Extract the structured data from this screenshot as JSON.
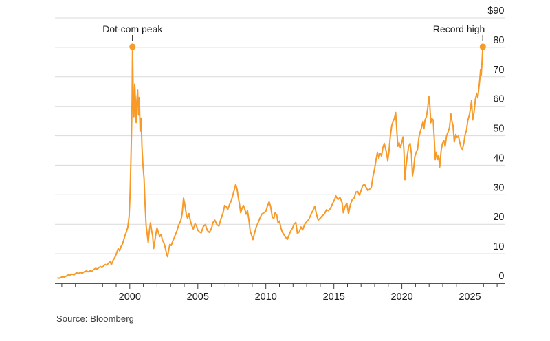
{
  "chart_data": {
    "type": "line",
    "title": "",
    "series_name": "Stock price",
    "unit": "$",
    "colors": {
      "line": "#F79A28",
      "grid": "#D9D9D9",
      "axis": "#3B3B3B",
      "text": "#1A1A1A"
    },
    "x_axis": {
      "range": [
        1994.5,
        2027.6
      ],
      "tick_years_start": 1995,
      "tick_years_end": 2027,
      "labeled_ticks": [
        2000,
        2005,
        2010,
        2015,
        2020,
        2025
      ]
    },
    "y_axis": {
      "range": [
        0,
        90
      ],
      "tick_step": 10,
      "tick_labels": [
        "0",
        "10",
        "20",
        "30",
        "40",
        "50",
        "60",
        "70",
        "80",
        "$90"
      ],
      "grid": true
    },
    "legend": "none",
    "annotations": [
      {
        "label": "Dot-com peak",
        "year": 2000.2,
        "value": 80.2,
        "align": "center"
      },
      {
        "label": "Record high",
        "year": 2025.95,
        "value": 80.2,
        "align": "end"
      }
    ],
    "points": [
      [
        1994.7,
        1.8
      ],
      [
        1994.8,
        1.7
      ],
      [
        1994.95,
        2.0
      ],
      [
        1995.1,
        2.2
      ],
      [
        1995.2,
        2.1
      ],
      [
        1995.35,
        2.5
      ],
      [
        1995.5,
        2.9
      ],
      [
        1995.6,
        2.7
      ],
      [
        1995.75,
        3.1
      ],
      [
        1995.9,
        2.8
      ],
      [
        1996.0,
        3.3
      ],
      [
        1996.1,
        3.6
      ],
      [
        1996.2,
        3.2
      ],
      [
        1996.35,
        3.7
      ],
      [
        1996.5,
        3.4
      ],
      [
        1996.65,
        3.9
      ],
      [
        1996.8,
        4.2
      ],
      [
        1996.95,
        3.9
      ],
      [
        1997.1,
        4.3
      ],
      [
        1997.2,
        4.0
      ],
      [
        1997.35,
        4.7
      ],
      [
        1997.5,
        5.1
      ],
      [
        1997.6,
        4.8
      ],
      [
        1997.75,
        5.4
      ],
      [
        1997.85,
        5.7
      ],
      [
        1997.95,
        5.3
      ],
      [
        1998.1,
        6.0
      ],
      [
        1998.2,
        6.4
      ],
      [
        1998.3,
        6.1
      ],
      [
        1998.45,
        6.9
      ],
      [
        1998.55,
        7.3
      ],
      [
        1998.65,
        6.3
      ],
      [
        1998.75,
        7.6
      ],
      [
        1998.85,
        8.4
      ],
      [
        1998.95,
        9.2
      ],
      [
        1999.05,
        10.5
      ],
      [
        1999.15,
        11.8
      ],
      [
        1999.25,
        11.0
      ],
      [
        1999.35,
        12.4
      ],
      [
        1999.45,
        13.2
      ],
      [
        1999.55,
        14.6
      ],
      [
        1999.65,
        16.2
      ],
      [
        1999.75,
        17.4
      ],
      [
        1999.85,
        19.0
      ],
      [
        1999.95,
        22.5
      ],
      [
        2000.02,
        30.0
      ],
      [
        2000.08,
        41.0
      ],
      [
        2000.13,
        52.0
      ],
      [
        2000.17,
        62.0
      ],
      [
        2000.2,
        80.2
      ],
      [
        2000.25,
        63.0
      ],
      [
        2000.3,
        56.5
      ],
      [
        2000.36,
        67.5
      ],
      [
        2000.42,
        62.0
      ],
      [
        2000.47,
        54.5
      ],
      [
        2000.53,
        62.5
      ],
      [
        2000.58,
        65.5
      ],
      [
        2000.64,
        57.0
      ],
      [
        2000.7,
        63.0
      ],
      [
        2000.76,
        51.5
      ],
      [
        2000.83,
        56.0
      ],
      [
        2000.9,
        46.0
      ],
      [
        2000.97,
        40.0
      ],
      [
        2001.05,
        35.5
      ],
      [
        2001.12,
        27.0
      ],
      [
        2001.2,
        19.5
      ],
      [
        2001.28,
        16.5
      ],
      [
        2001.35,
        13.8
      ],
      [
        2001.43,
        17.5
      ],
      [
        2001.52,
        20.5
      ],
      [
        2001.6,
        18.0
      ],
      [
        2001.68,
        16.0
      ],
      [
        2001.75,
        11.8
      ],
      [
        2001.83,
        14.0
      ],
      [
        2001.92,
        16.8
      ],
      [
        2002.0,
        18.8
      ],
      [
        2002.1,
        17.2
      ],
      [
        2002.2,
        15.8
      ],
      [
        2002.3,
        16.6
      ],
      [
        2002.4,
        14.6
      ],
      [
        2002.5,
        13.8
      ],
      [
        2002.6,
        12.2
      ],
      [
        2002.7,
        10.0
      ],
      [
        2002.78,
        9.0
      ],
      [
        2002.87,
        11.6
      ],
      [
        2002.95,
        13.2
      ],
      [
        2003.05,
        12.8
      ],
      [
        2003.15,
        14.2
      ],
      [
        2003.3,
        15.8
      ],
      [
        2003.45,
        17.6
      ],
      [
        2003.6,
        19.8
      ],
      [
        2003.75,
        21.2
      ],
      [
        2003.85,
        23.6
      ],
      [
        2003.95,
        28.9
      ],
      [
        2004.05,
        26.5
      ],
      [
        2004.15,
        23.4
      ],
      [
        2004.25,
        22.0
      ],
      [
        2004.35,
        23.6
      ],
      [
        2004.45,
        21.2
      ],
      [
        2004.55,
        19.6
      ],
      [
        2004.67,
        18.4
      ],
      [
        2004.8,
        20.2
      ],
      [
        2004.9,
        19.4
      ],
      [
        2005.0,
        18.0
      ],
      [
        2005.12,
        17.4
      ],
      [
        2005.25,
        17.1
      ],
      [
        2005.4,
        19.2
      ],
      [
        2005.55,
        19.9
      ],
      [
        2005.7,
        17.9
      ],
      [
        2005.85,
        17.2
      ],
      [
        2006.0,
        18.6
      ],
      [
        2006.12,
        20.6
      ],
      [
        2006.25,
        21.4
      ],
      [
        2006.4,
        19.9
      ],
      [
        2006.55,
        19.4
      ],
      [
        2006.7,
        21.8
      ],
      [
        2006.85,
        23.8
      ],
      [
        2006.97,
        26.4
      ],
      [
        2007.1,
        25.9
      ],
      [
        2007.2,
        25.0
      ],
      [
        2007.32,
        26.6
      ],
      [
        2007.45,
        27.9
      ],
      [
        2007.57,
        29.8
      ],
      [
        2007.68,
        31.6
      ],
      [
        2007.78,
        33.5
      ],
      [
        2007.88,
        32.0
      ],
      [
        2007.97,
        29.2
      ],
      [
        2008.07,
        26.6
      ],
      [
        2008.15,
        23.9
      ],
      [
        2008.25,
        25.4
      ],
      [
        2008.35,
        26.4
      ],
      [
        2008.45,
        25.2
      ],
      [
        2008.55,
        23.4
      ],
      [
        2008.65,
        24.6
      ],
      [
        2008.75,
        21.6
      ],
      [
        2008.85,
        17.6
      ],
      [
        2008.95,
        16.4
      ],
      [
        2009.05,
        14.8
      ],
      [
        2009.15,
        16.6
      ],
      [
        2009.28,
        18.9
      ],
      [
        2009.42,
        20.4
      ],
      [
        2009.55,
        21.9
      ],
      [
        2009.7,
        23.4
      ],
      [
        2009.85,
        23.9
      ],
      [
        2010.0,
        24.4
      ],
      [
        2010.12,
        26.2
      ],
      [
        2010.24,
        27.6
      ],
      [
        2010.35,
        26.1
      ],
      [
        2010.47,
        22.6
      ],
      [
        2010.58,
        21.9
      ],
      [
        2010.68,
        23.9
      ],
      [
        2010.8,
        23.1
      ],
      [
        2010.9,
        20.4
      ],
      [
        2011.0,
        21.1
      ],
      [
        2011.1,
        18.9
      ],
      [
        2011.2,
        17.4
      ],
      [
        2011.32,
        16.6
      ],
      [
        2011.45,
        15.6
      ],
      [
        2011.58,
        14.9
      ],
      [
        2011.7,
        16.3
      ],
      [
        2011.82,
        17.6
      ],
      [
        2011.95,
        18.6
      ],
      [
        2012.08,
        20.1
      ],
      [
        2012.2,
        20.6
      ],
      [
        2012.32,
        16.9
      ],
      [
        2012.45,
        17.4
      ],
      [
        2012.58,
        19.1
      ],
      [
        2012.7,
        18.1
      ],
      [
        2012.85,
        19.9
      ],
      [
        2013.0,
        20.9
      ],
      [
        2013.15,
        21.6
      ],
      [
        2013.3,
        23.1
      ],
      [
        2013.45,
        24.6
      ],
      [
        2013.6,
        26.1
      ],
      [
        2013.72,
        23.4
      ],
      [
        2013.85,
        21.4
      ],
      [
        2014.0,
        22.1
      ],
      [
        2014.15,
        22.9
      ],
      [
        2014.3,
        23.4
      ],
      [
        2014.45,
        24.9
      ],
      [
        2014.6,
        24.6
      ],
      [
        2014.75,
        25.4
      ],
      [
        2014.9,
        26.9
      ],
      [
        2015.05,
        28.4
      ],
      [
        2015.15,
        29.6
      ],
      [
        2015.3,
        28.4
      ],
      [
        2015.45,
        29.1
      ],
      [
        2015.6,
        27.4
      ],
      [
        2015.7,
        23.9
      ],
      [
        2015.82,
        26.1
      ],
      [
        2015.95,
        27.1
      ],
      [
        2016.08,
        23.6
      ],
      [
        2016.2,
        26.4
      ],
      [
        2016.35,
        28.4
      ],
      [
        2016.5,
        28.9
      ],
      [
        2016.62,
        30.9
      ],
      [
        2016.75,
        31.1
      ],
      [
        2016.88,
        29.9
      ],
      [
        2017.0,
        31.4
      ],
      [
        2017.12,
        33.1
      ],
      [
        2017.25,
        33.6
      ],
      [
        2017.38,
        32.4
      ],
      [
        2017.5,
        31.4
      ],
      [
        2017.62,
        31.9
      ],
      [
        2017.75,
        32.4
      ],
      [
        2017.88,
        36.4
      ],
      [
        2018.0,
        38.9
      ],
      [
        2018.1,
        41.9
      ],
      [
        2018.2,
        44.4
      ],
      [
        2018.3,
        42.4
      ],
      [
        2018.4,
        44.1
      ],
      [
        2018.5,
        43.1
      ],
      [
        2018.6,
        45.9
      ],
      [
        2018.7,
        47.4
      ],
      [
        2018.8,
        45.6
      ],
      [
        2018.88,
        44.1
      ],
      [
        2018.96,
        41.6
      ],
      [
        2019.05,
        44.6
      ],
      [
        2019.15,
        49.9
      ],
      [
        2019.25,
        53.4
      ],
      [
        2019.35,
        54.9
      ],
      [
        2019.45,
        55.9
      ],
      [
        2019.54,
        57.9
      ],
      [
        2019.63,
        51.4
      ],
      [
        2019.7,
        46.4
      ],
      [
        2019.8,
        47.6
      ],
      [
        2019.9,
        45.9
      ],
      [
        2020.0,
        47.9
      ],
      [
        2020.08,
        49.6
      ],
      [
        2020.15,
        44.9
      ],
      [
        2020.22,
        35.1
      ],
      [
        2020.3,
        39.4
      ],
      [
        2020.4,
        43.4
      ],
      [
        2020.5,
        46.4
      ],
      [
        2020.6,
        47.4
      ],
      [
        2020.7,
        43.9
      ],
      [
        2020.78,
        36.4
      ],
      [
        2020.86,
        38.6
      ],
      [
        2020.95,
        42.9
      ],
      [
        2021.05,
        44.4
      ],
      [
        2021.15,
        45.4
      ],
      [
        2021.25,
        49.4
      ],
      [
        2021.35,
        51.4
      ],
      [
        2021.45,
        52.9
      ],
      [
        2021.55,
        54.9
      ],
      [
        2021.62,
        52.4
      ],
      [
        2021.7,
        55.4
      ],
      [
        2021.8,
        56.4
      ],
      [
        2021.9,
        59.4
      ],
      [
        2021.98,
        63.4
      ],
      [
        2022.05,
        60.4
      ],
      [
        2022.12,
        54.4
      ],
      [
        2022.2,
        55.9
      ],
      [
        2022.3,
        55.4
      ],
      [
        2022.38,
        48.9
      ],
      [
        2022.45,
        41.9
      ],
      [
        2022.53,
        44.4
      ],
      [
        2022.62,
        41.9
      ],
      [
        2022.7,
        43.4
      ],
      [
        2022.78,
        39.4
      ],
      [
        2022.88,
        44.9
      ],
      [
        2022.98,
        47.4
      ],
      [
        2023.08,
        48.4
      ],
      [
        2023.18,
        46.4
      ],
      [
        2023.28,
        49.9
      ],
      [
        2023.4,
        51.4
      ],
      [
        2023.5,
        52.9
      ],
      [
        2023.6,
        57.4
      ],
      [
        2023.68,
        54.9
      ],
      [
        2023.76,
        53.4
      ],
      [
        2023.85,
        47.9
      ],
      [
        2023.95,
        50.4
      ],
      [
        2024.05,
        49.4
      ],
      [
        2024.15,
        49.9
      ],
      [
        2024.25,
        47.9
      ],
      [
        2024.35,
        45.9
      ],
      [
        2024.45,
        45.4
      ],
      [
        2024.55,
        47.4
      ],
      [
        2024.65,
        50.4
      ],
      [
        2024.75,
        51.9
      ],
      [
        2024.85,
        55.4
      ],
      [
        2024.95,
        56.9
      ],
      [
        2025.05,
        59.4
      ],
      [
        2025.12,
        61.9
      ],
      [
        2025.2,
        55.4
      ],
      [
        2025.3,
        57.9
      ],
      [
        2025.4,
        62.4
      ],
      [
        2025.5,
        64.4
      ],
      [
        2025.58,
        62.9
      ],
      [
        2025.65,
        65.9
      ],
      [
        2025.72,
        68.9
      ],
      [
        2025.78,
        72.4
      ],
      [
        2025.83,
        70.4
      ],
      [
        2025.88,
        74.4
      ],
      [
        2025.95,
        80.2
      ]
    ]
  },
  "source": {
    "text": "Source: Bloomberg"
  }
}
